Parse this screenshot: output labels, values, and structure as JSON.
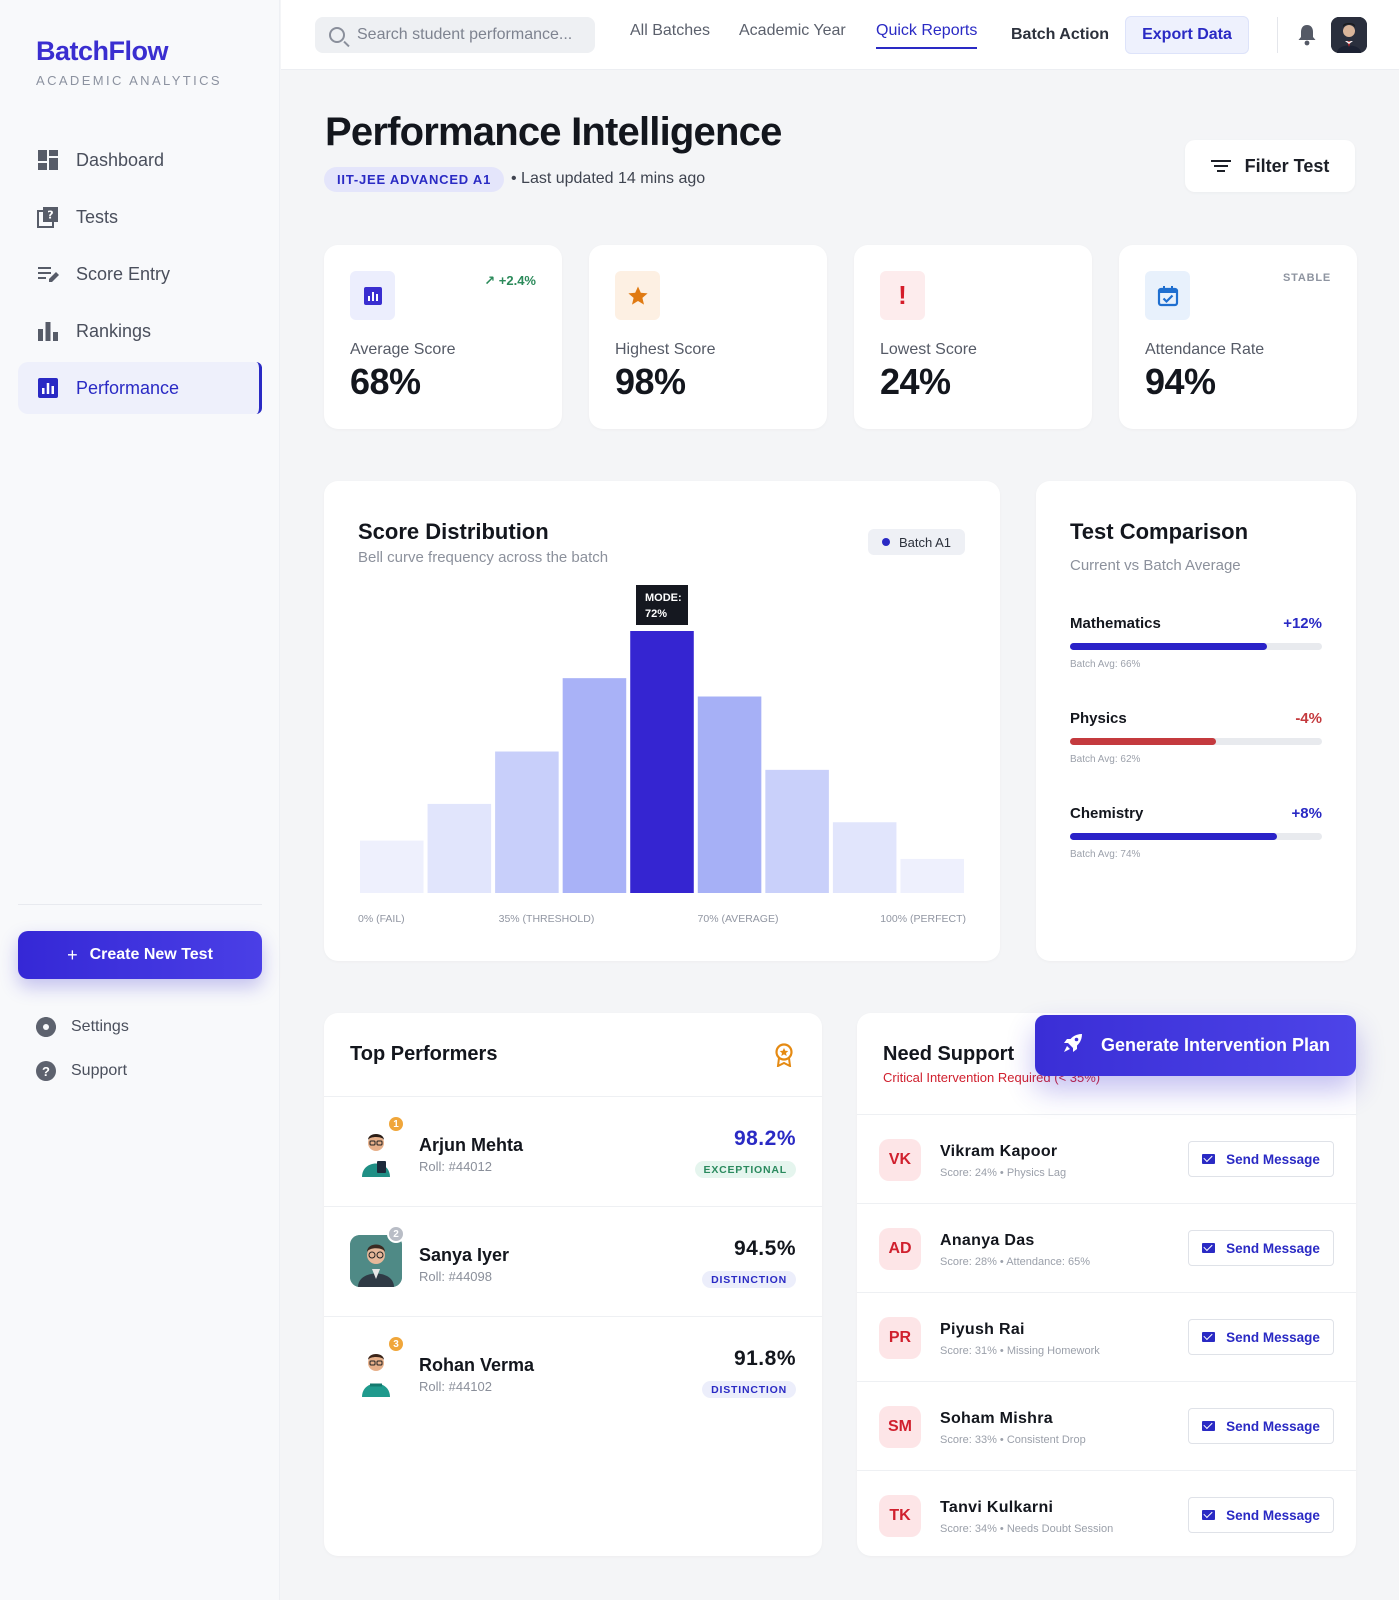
{
  "brand": {
    "name": "BatchFlow",
    "tagline": "ACADEMIC ANALYTICS"
  },
  "sidebar": {
    "items": [
      {
        "label": "Dashboard",
        "icon": "dashboard-icon"
      },
      {
        "label": "Tests",
        "icon": "quiz-icon"
      },
      {
        "label": "Score Entry",
        "icon": "edit-list-icon"
      },
      {
        "label": "Rankings",
        "icon": "bar-chart-icon"
      },
      {
        "label": "Performance",
        "icon": "analytics-icon",
        "active": true
      }
    ],
    "create_label": "Create New Test",
    "settings_label": "Settings",
    "support_label": "Support"
  },
  "topbar": {
    "search_placeholder": "Search student performance...",
    "nav": [
      "All Batches",
      "Academic Year",
      "Quick Reports"
    ],
    "active_nav": "Quick Reports",
    "batch_action": "Batch Action",
    "export_label": "Export Data"
  },
  "header": {
    "title": "Performance Intelligence",
    "batch_tag": "IIT-JEE ADVANCED A1",
    "updated": "• Last updated 14 mins ago",
    "filter_label": "Filter Test"
  },
  "stats": [
    {
      "label": "Average Score",
      "value": "68%",
      "trend": "+2.4%",
      "icon": "analytics-icon",
      "color": "#3a2ed0",
      "bg": "#eceefd"
    },
    {
      "label": "Highest Score",
      "value": "98%",
      "icon": "star-icon",
      "color": "#e07a12",
      "bg": "#fdf0e3"
    },
    {
      "label": "Lowest Score",
      "value": "24%",
      "icon": "alert-icon",
      "color": "#d51d2b",
      "bg": "#fdeced"
    },
    {
      "label": "Attendance Rate",
      "value": "94%",
      "badge": "STABLE",
      "icon": "calendar-check-icon",
      "color": "#1f6fd0",
      "bg": "#e8f1fc"
    }
  ],
  "distribution": {
    "title": "Score Distribution",
    "subtitle": "Bell curve frequency across the batch",
    "legend": "Batch A1",
    "tooltip_line1": "MODE:",
    "tooltip_line2": "72%",
    "x_ticks": [
      "0% (FAIL)",
      "35% (THRESHOLD)",
      "70% (AVERAGE)",
      "100% (PERFECT)"
    ]
  },
  "chart_data": {
    "type": "bar",
    "categories": [
      "b1",
      "b2",
      "b3",
      "b4",
      "b5",
      "b6",
      "b7",
      "b8",
      "b9"
    ],
    "values": [
      20,
      34,
      54,
      82,
      100,
      75,
      47,
      27,
      13
    ],
    "colors": [
      "#eef0fd",
      "#e1e5fc",
      "#c8cffa",
      "#a9b2f7",
      "#3525d1",
      "#a6b0f6",
      "#c9d0fa",
      "#e1e5fc",
      "#eef0fd"
    ],
    "highlight_index": 4,
    "tooltip": "MODE: 72%",
    "xticks": [
      "0% (FAIL)",
      "35% (THRESHOLD)",
      "70% (AVERAGE)",
      "100% (PERFECT)"
    ],
    "ylim": [
      0,
      100
    ],
    "legend": "Batch A1",
    "title": "Score Distribution",
    "subtitle": "Bell curve frequency across the batch"
  },
  "comparison": {
    "title": "Test Comparison",
    "subtitle": "Current vs Batch Average",
    "subjects": [
      {
        "name": "Mathematics",
        "delta": "+12%",
        "avg": "Batch Avg: 66%",
        "fill": 0.78,
        "color": "#2a22c8",
        "delta_color": "#2a2ac4"
      },
      {
        "name": "Physics",
        "delta": "-4%",
        "avg": "Batch Avg: 62%",
        "fill": 0.58,
        "color": "#c43a3e",
        "delta_color": "#c43a3e"
      },
      {
        "name": "Chemistry",
        "delta": "+8%",
        "avg": "Batch Avg: 74%",
        "fill": 0.82,
        "color": "#2a22c8",
        "delta_color": "#2a2ac4"
      }
    ]
  },
  "top_performers": {
    "title": "Top Performers",
    "items": [
      {
        "rank": "1",
        "name": "Arjun Mehta",
        "roll": "Roll: #44012",
        "score": "98.2%",
        "badge": "EXCEPTIONAL",
        "score_color": "#2a2ac4",
        "badge_bg": "#e5f5ee",
        "badge_color": "#2a8a5e",
        "rank_color": "#f0a63a",
        "avatar_bg": "#ffffff"
      },
      {
        "rank": "2",
        "name": "Sanya Iyer",
        "roll": "Roll: #44098",
        "score": "94.5%",
        "badge": "DISTINCTION",
        "score_color": "#13161d",
        "badge_bg": "#eceefb",
        "badge_color": "#2a2ac4",
        "rank_color": "#b9bdc6",
        "avatar_bg": "#4f8a86"
      },
      {
        "rank": "3",
        "name": "Rohan Verma",
        "roll": "Roll: #44102",
        "score": "91.8%",
        "badge": "DISTINCTION",
        "score_color": "#13161d",
        "badge_bg": "#eceefb",
        "badge_color": "#2a2ac4",
        "rank_color": "#f0a63a",
        "avatar_bg": "#ffffff"
      }
    ]
  },
  "need_support": {
    "title": "Need Support",
    "subtitle": "Critical Intervention Required (< 35%)",
    "cta": "Generate Intervention Plan",
    "items": [
      {
        "initials": "VK",
        "name": "Vikram Kapoor",
        "meta": "Score: 24% • Physics Lag",
        "action": "Send Message"
      },
      {
        "initials": "AD",
        "name": "Ananya Das",
        "meta": "Score: 28% • Attendance: 65%",
        "action": "Send Message"
      },
      {
        "initials": "PR",
        "name": "Piyush Rai",
        "meta": "Score: 31% • Missing Homework",
        "action": "Send Message"
      },
      {
        "initials": "SM",
        "name": "Soham Mishra",
        "meta": "Score: 33% • Consistent Drop",
        "action": "Send Message"
      },
      {
        "initials": "TK",
        "name": "Tanvi Kulkarni",
        "meta": "Score: 34% • Needs Doubt Session",
        "action": "Send Message"
      }
    ]
  }
}
